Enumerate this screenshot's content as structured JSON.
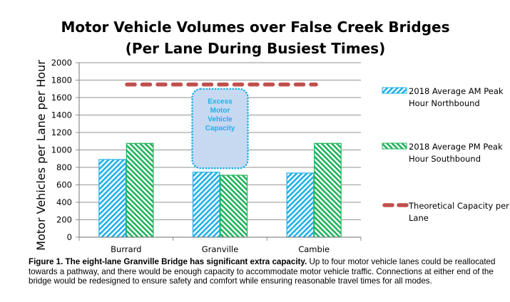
{
  "chart_data": {
    "type": "bar",
    "title": [
      "Motor Vehicle Volumes over False Creek Bridges",
      "(Per Lane During Busiest Times)"
    ],
    "xlabel": "",
    "ylabel": "Motor Vehicles per Lane per Hour",
    "ylim": [
      0,
      2000
    ],
    "yticks": [
      0,
      200,
      400,
      600,
      800,
      1000,
      1200,
      1400,
      1600,
      1800,
      2000
    ],
    "grid": true,
    "categories": [
      "Burrard",
      "Granville",
      "Cambie"
    ],
    "series": [
      {
        "name": "2018 Average AM Peak Hour Northbound",
        "legend_lines": [
          "2018 Average AM Peak",
          "Hour Northbound"
        ],
        "values": [
          890,
          745,
          735
        ],
        "color": "#1fb0e8",
        "pattern": "diagonal-down"
      },
      {
        "name": "2018 Average PM Peak Hour Southbound",
        "legend_lines": [
          "2018 Average PM Peak",
          "Hour Southbound"
        ],
        "values": [
          1075,
          710,
          1075
        ],
        "color": "#1fb35c",
        "pattern": "diagonal-up"
      }
    ],
    "reference_line": {
      "name": "Theoretical Capacity per Lane",
      "legend_lines": [
        "Theoretical Capacity per",
        "Lane"
      ],
      "value": 1750,
      "color": "#c0504d",
      "style": "dashed"
    },
    "annotation": {
      "lines": [
        "Excess",
        "Motor",
        "Vehicle",
        "Capacity"
      ],
      "category": "Granville",
      "range": [
        790,
        1700
      ],
      "fill": "#c6d9f1",
      "border": "#1fb0e8"
    },
    "legend_position": "right"
  },
  "caption": {
    "bold": "Figure 1. The eight-lane Granville Bridge has significant extra capacity.",
    "text": " Up to four motor vehicle lanes could be reallocated towards a pathway, and there would be enough capacity to accommodate motor vehicle traffic. Connections at either end of the bridge would be redesigned to ensure safety and comfort while ensuring reasonable travel times for all modes."
  }
}
